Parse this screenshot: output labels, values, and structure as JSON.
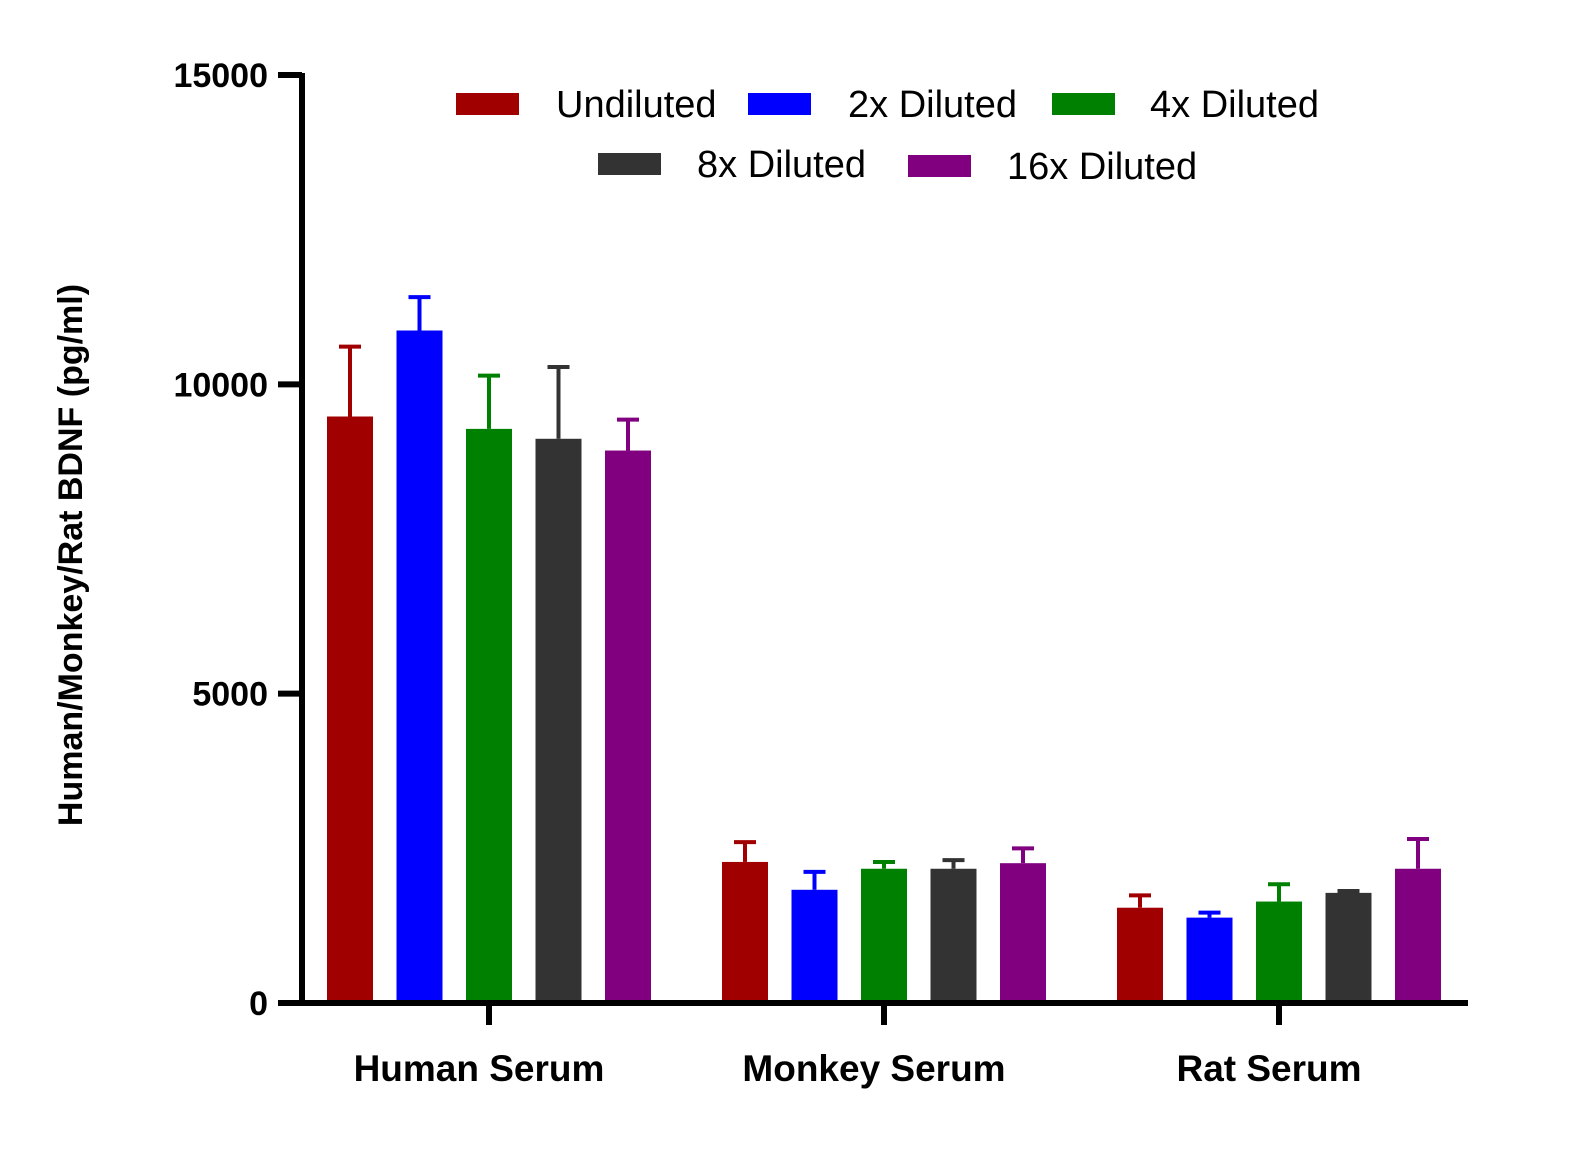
{
  "chart_data": {
    "type": "bar",
    "ylabel": "Human/Monkey/Rat BDNF (pg/ml)",
    "xlabel": "",
    "ylim": [
      0,
      15000
    ],
    "yticks": [
      0,
      5000,
      10000,
      15000
    ],
    "legend_position": "top",
    "categories": [
      "Human Serum",
      "Monkey Serum",
      "Rat Serum"
    ],
    "series": [
      {
        "name": "Undiluted",
        "color": "#a00000",
        "values": [
          9480,
          2280,
          1540
        ],
        "errors": [
          1130,
          320,
          200
        ]
      },
      {
        "name": "2x Diluted",
        "color": "#0000ff",
        "values": [
          10870,
          1830,
          1380
        ],
        "errors": [
          540,
          290,
          80
        ]
      },
      {
        "name": "4x Diluted",
        "color": "#008000",
        "values": [
          9280,
          2170,
          1640
        ],
        "errors": [
          860,
          110,
          280
        ]
      },
      {
        "name": "8x Diluted",
        "color": "#333333",
        "values": [
          9120,
          2170,
          1780
        ],
        "errors": [
          1160,
          140,
          30
        ]
      },
      {
        "name": "16x Diluted",
        "color": "#800080",
        "values": [
          8930,
          2260,
          2170
        ],
        "errors": [
          500,
          240,
          480
        ]
      }
    ]
  }
}
